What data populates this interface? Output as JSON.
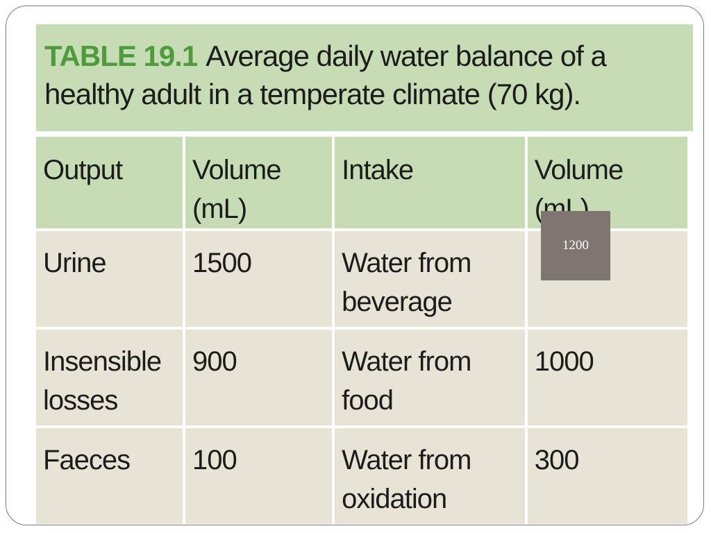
{
  "table": {
    "label": "TABLE 19.1",
    "title": "Average daily water balance of a healthy adult in a temperate climate (70 kg).",
    "headers": [
      "Output",
      "Volume (mL)",
      "Intake",
      "Volume (mL)"
    ],
    "rows": [
      [
        "Urine",
        "1500",
        "Water from beverage",
        ""
      ],
      [
        "Insensible losses",
        "900",
        "Water from food",
        "1000"
      ],
      [
        "Faeces",
        "100",
        "Water from oxidation",
        "300"
      ]
    ]
  },
  "overlay": {
    "value": "1200"
  }
}
